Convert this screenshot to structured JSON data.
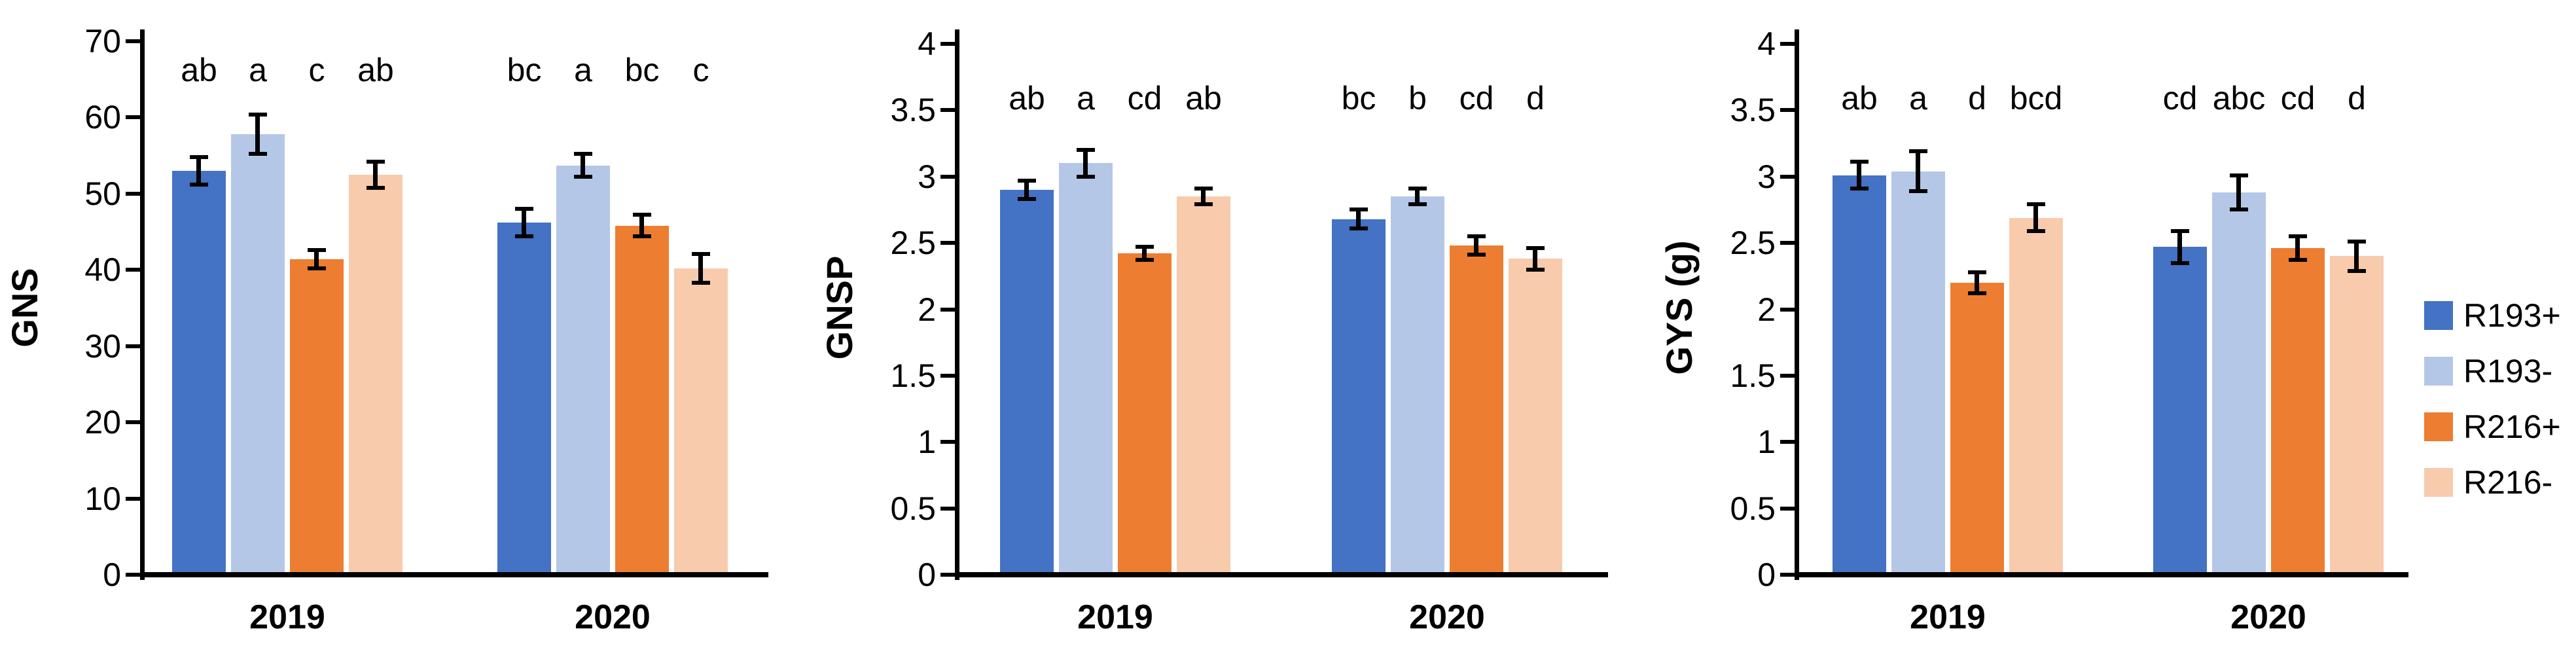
{
  "figure": {
    "background": "#FFFFFF",
    "text_color": "#000000"
  },
  "legend": {
    "position": "right",
    "items": [
      {
        "label": "R193+",
        "color": "#4472C4"
      },
      {
        "label": "R193-",
        "color": "#B4C7E7"
      },
      {
        "label": "R216+",
        "color": "#ED7D31"
      },
      {
        "label": "R216-",
        "color": "#F8CBAD"
      }
    ]
  },
  "chart_data": [
    {
      "type": "bar",
      "title": "",
      "xlabel": "",
      "ylabel": "GNS",
      "categories": [
        "2019",
        "2020"
      ],
      "ylim": [
        0,
        70
      ],
      "yticks": [
        0,
        10,
        20,
        30,
        40,
        50,
        60,
        70
      ],
      "grid": false,
      "error_bars": true,
      "legend_position": "right-of-figure",
      "series": [
        {
          "name": "R193+",
          "color": "#4472C4",
          "values": [
            53.0,
            46.2
          ],
          "errors": [
            1.8,
            1.8
          ],
          "letters": [
            "ab",
            "bc"
          ]
        },
        {
          "name": "R193-",
          "color": "#B4C7E7",
          "values": [
            57.8,
            53.7
          ],
          "errors": [
            2.6,
            1.5
          ],
          "letters": [
            "a",
            "a"
          ]
        },
        {
          "name": "R216+",
          "color": "#ED7D31",
          "values": [
            41.4,
            45.8
          ],
          "errors": [
            1.2,
            1.4
          ],
          "letters": [
            "c",
            "bc"
          ]
        },
        {
          "name": "R216-",
          "color": "#F8CBAD",
          "values": [
            52.5,
            40.2
          ],
          "errors": [
            1.7,
            1.9
          ],
          "letters": [
            "ab",
            "c"
          ]
        }
      ]
    },
    {
      "type": "bar",
      "title": "",
      "xlabel": "",
      "ylabel": "GNSP",
      "categories": [
        "2019",
        "2020"
      ],
      "ylim": [
        0,
        4
      ],
      "yticks": [
        0,
        0.5,
        1,
        1.5,
        2,
        2.5,
        3,
        3.5,
        4
      ],
      "grid": false,
      "error_bars": true,
      "series": [
        {
          "name": "R193+",
          "color": "#4472C4",
          "values": [
            2.9,
            2.68
          ],
          "errors": [
            0.07,
            0.07
          ],
          "letters": [
            "ab",
            "bc"
          ]
        },
        {
          "name": "R193-",
          "color": "#B4C7E7",
          "values": [
            3.1,
            2.85
          ],
          "errors": [
            0.1,
            0.06
          ],
          "letters": [
            "a",
            "b"
          ]
        },
        {
          "name": "R216+",
          "color": "#ED7D31",
          "values": [
            2.42,
            2.48
          ],
          "errors": [
            0.05,
            0.07
          ],
          "letters": [
            "cd",
            "cd"
          ]
        },
        {
          "name": "R216-",
          "color": "#F8CBAD",
          "values": [
            2.85,
            2.38
          ],
          "errors": [
            0.06,
            0.08
          ],
          "letters": [
            "ab",
            "d"
          ]
        }
      ]
    },
    {
      "type": "bar",
      "title": "",
      "xlabel": "",
      "ylabel": "GYS (g)",
      "categories": [
        "2019",
        "2020"
      ],
      "ylim": [
        0,
        4
      ],
      "yticks": [
        0,
        0.5,
        1,
        1.5,
        2,
        2.5,
        3,
        3.5,
        4
      ],
      "grid": false,
      "error_bars": true,
      "series": [
        {
          "name": "R193+",
          "color": "#4472C4",
          "values": [
            3.01,
            2.47
          ],
          "errors": [
            0.1,
            0.12
          ],
          "letters": [
            "ab",
            "cd"
          ]
        },
        {
          "name": "R193-",
          "color": "#B4C7E7",
          "values": [
            3.04,
            2.88
          ],
          "errors": [
            0.15,
            0.13
          ],
          "letters": [
            "a",
            "abc"
          ]
        },
        {
          "name": "R216+",
          "color": "#ED7D31",
          "values": [
            2.2,
            2.46
          ],
          "errors": [
            0.08,
            0.09
          ],
          "letters": [
            "d",
            "cd"
          ]
        },
        {
          "name": "R216-",
          "color": "#F8CBAD",
          "values": [
            2.69,
            2.4
          ],
          "errors": [
            0.1,
            0.11
          ],
          "letters": [
            "bcd",
            "d"
          ]
        }
      ]
    }
  ]
}
